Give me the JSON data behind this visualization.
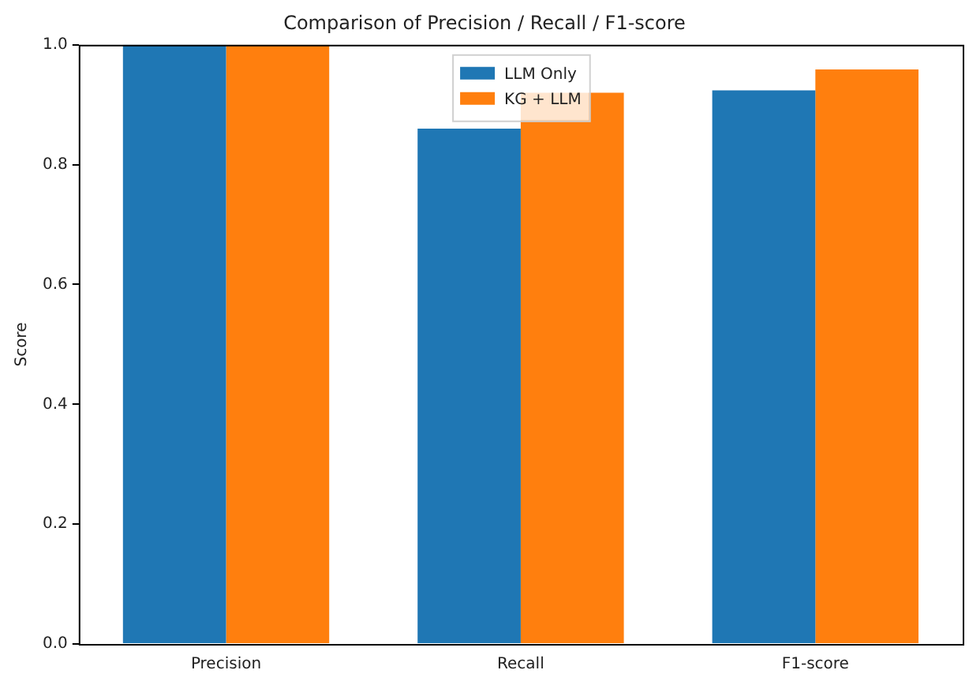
{
  "chart_data": {
    "type": "bar",
    "title": "Comparison of Precision / Recall / F1-score",
    "ylabel": "Score",
    "categories": [
      "Precision",
      "Recall",
      "F1-score"
    ],
    "series": [
      {
        "name": "LLM Only",
        "color": "#1f77b4",
        "values": [
          1.0,
          0.86,
          0.924
        ]
      },
      {
        "name": "KG + LLM",
        "color": "#ff7f0e",
        "values": [
          1.0,
          0.92,
          0.959
        ]
      }
    ],
    "ylim": [
      0,
      1
    ],
    "yticks": [
      {
        "value": 0,
        "label": "0.0"
      },
      0.2,
      0.4,
      0.6,
      0.8,
      {
        "value": 1,
        "label": "1.0"
      }
    ],
    "grid": false,
    "legend": "top"
  }
}
